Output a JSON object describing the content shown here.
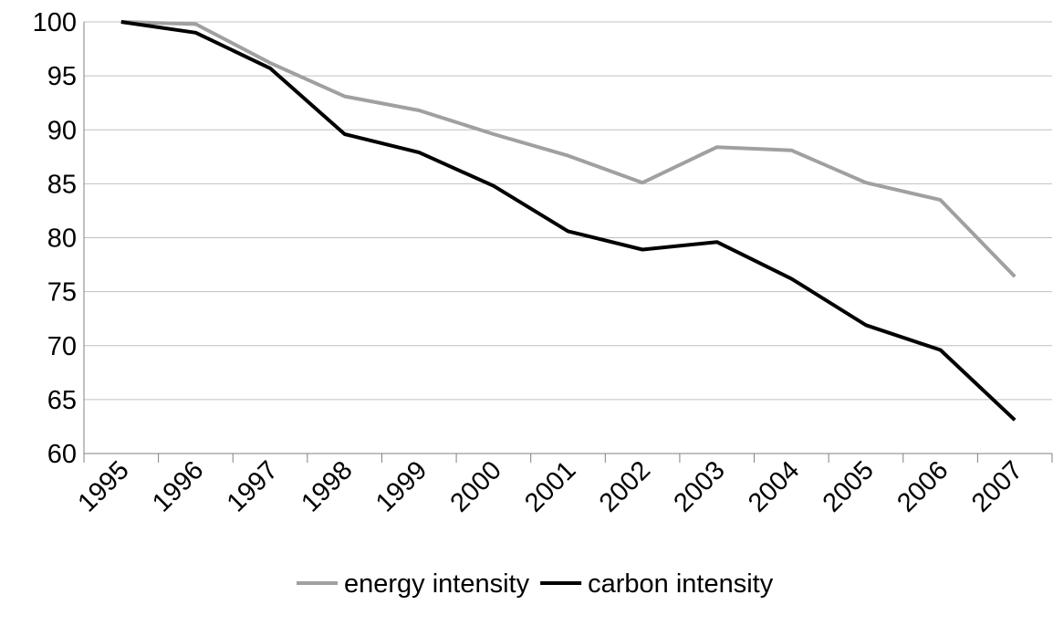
{
  "chart_data": {
    "type": "line",
    "title": "",
    "xlabel": "",
    "ylabel": "",
    "categories": [
      "1995",
      "1996",
      "1997",
      "1998",
      "1999",
      "2000",
      "2001",
      "2002",
      "2003",
      "2004",
      "2005",
      "2006",
      "2007"
    ],
    "ylim": [
      60,
      100
    ],
    "yticks": [
      60,
      65,
      70,
      75,
      80,
      85,
      90,
      95,
      100
    ],
    "grid": true,
    "legend_position": "bottom",
    "series": [
      {
        "name": "energy intensity",
        "color": "#a0a0a0",
        "values": [
          100,
          99.8,
          96.2,
          93.1,
          91.8,
          89.6,
          87.6,
          85.1,
          88.4,
          88.1,
          85.1,
          83.5,
          76.4
        ]
      },
      {
        "name": "carbon intensity",
        "color": "#000000",
        "values": [
          100,
          99.0,
          95.7,
          89.6,
          87.9,
          84.8,
          80.6,
          78.9,
          79.6,
          76.2,
          71.9,
          69.6,
          63.1
        ]
      }
    ]
  }
}
